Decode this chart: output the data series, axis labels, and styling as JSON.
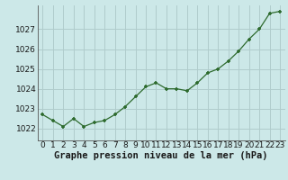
{
  "x": [
    0,
    1,
    2,
    3,
    4,
    5,
    6,
    7,
    8,
    9,
    10,
    11,
    12,
    13,
    14,
    15,
    16,
    17,
    18,
    19,
    20,
    21,
    22,
    23
  ],
  "y": [
    1022.7,
    1022.4,
    1022.1,
    1022.5,
    1022.1,
    1022.3,
    1022.4,
    1022.7,
    1023.1,
    1023.6,
    1024.1,
    1024.3,
    1024.0,
    1024.0,
    1023.9,
    1024.3,
    1024.8,
    1025.0,
    1025.4,
    1025.9,
    1026.5,
    1027.0,
    1027.8,
    1027.9
  ],
  "line_color": "#2d6a2d",
  "marker_color": "#2d6a2d",
  "bg_color": "#cce8e8",
  "grid_color": "#b0cccc",
  "xlabel": "Graphe pression niveau de la mer (hPa)",
  "ylabel_ticks": [
    1022,
    1023,
    1024,
    1025,
    1026,
    1027
  ],
  "ylim": [
    1021.4,
    1028.2
  ],
  "xlim": [
    -0.5,
    23.5
  ],
  "tick_fontsize": 6.5,
  "xlabel_fontsize": 7.5,
  "marker_size": 3.5,
  "line_width": 0.9
}
